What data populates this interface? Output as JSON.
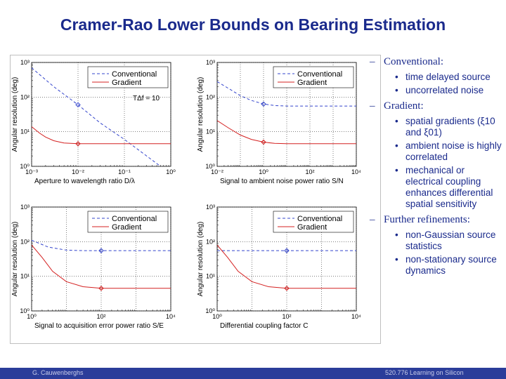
{
  "slide": {
    "title": "Cramer-Rao Lower Bounds on Bearing Estimation",
    "footer_left": "G. Cauwenberghs",
    "footer_right": "520.776 Learning on Silicon"
  },
  "bullets": [
    {
      "heading": "Conventional:",
      "items": [
        "time delayed source",
        "uncorrelated noise"
      ]
    },
    {
      "heading": "Gradient:",
      "items": [
        "spatial gradients (ξ10 and ξ01)",
        "ambient noise is highly correlated",
        "mechanical or electrical coupling enhances differential spatial sensitivity"
      ]
    },
    {
      "heading": "Further refinements:",
      "items": [
        "non-Gaussian source statistics",
        "non-stationary source dynamics"
      ]
    }
  ],
  "colors": {
    "conventional": "#3344cc",
    "gradient": "#d42020",
    "title": "#1a2a8c",
    "footer": "#2b3d9a"
  },
  "chart_data": [
    {
      "type": "line",
      "xlabel": "Aperture to wavelength ratio  D/λ",
      "ylabel": "Angular resolution (deg)",
      "xscale": "log",
      "yscale": "log",
      "xlim": [
        0.001,
        1
      ],
      "ylim": [
        1,
        1000
      ],
      "xticks": [
        "10⁻³",
        "10⁻²",
        "10⁻¹",
        "10⁰"
      ],
      "yticks": [
        "10⁰",
        "10¹",
        "10²",
        "10³"
      ],
      "legend": "top-right",
      "annotation": "TΔf = 10",
      "series": [
        {
          "name": "Conventional",
          "style": "dashed",
          "x": [
            0.001,
            0.003,
            0.01,
            0.03,
            0.1,
            0.3,
            0.6
          ],
          "y": [
            700,
            200,
            60,
            18,
            6,
            2,
            1
          ]
        },
        {
          "name": "Gradient",
          "style": "solid",
          "x": [
            0.001,
            0.0015,
            0.002,
            0.003,
            0.005,
            0.007,
            0.01,
            0.02,
            0.05,
            0.1,
            0.3,
            1
          ],
          "y": [
            14,
            9,
            7,
            5.5,
            4.7,
            4.6,
            4.5,
            4.5,
            4.5,
            4.5,
            4.5,
            4.5
          ]
        }
      ],
      "markers": [
        {
          "series": "Conventional",
          "x": 0.01,
          "y": 60
        },
        {
          "series": "Gradient",
          "x": 0.01,
          "y": 4.5
        }
      ]
    },
    {
      "type": "line",
      "xlabel": "Signal to ambient noise power ratio  S/N",
      "ylabel": "Angular resolution (deg)",
      "xscale": "log",
      "yscale": "log",
      "xlim": [
        0.01,
        10000
      ],
      "ylim": [
        1,
        1000
      ],
      "xticks": [
        "10⁻²",
        "10⁰",
        "10²",
        "10⁴"
      ],
      "yticks": [
        "10⁰",
        "10¹",
        "10²",
        "10³"
      ],
      "legend": "top-right",
      "series": [
        {
          "name": "Conventional",
          "style": "dashed",
          "x": [
            0.01,
            0.03,
            0.1,
            0.3,
            1,
            3,
            10,
            100,
            1000,
            10000
          ],
          "y": [
            280,
            180,
            110,
            80,
            63,
            57,
            55,
            55,
            55,
            55
          ]
        },
        {
          "name": "Gradient",
          "style": "solid",
          "x": [
            0.01,
            0.03,
            0.1,
            0.3,
            1,
            3,
            10,
            100,
            1000,
            10000
          ],
          "y": [
            21,
            13,
            8,
            6,
            5,
            4.6,
            4.5,
            4.5,
            4.5,
            4.5
          ]
        }
      ],
      "markers": [
        {
          "series": "Conventional",
          "x": 1,
          "y": 63
        },
        {
          "series": "Gradient",
          "x": 1,
          "y": 5
        }
      ]
    },
    {
      "type": "line",
      "xlabel": "Signal to acquisition error power ratio  S/E",
      "ylabel": "Angular resolution (deg)",
      "xscale": "log",
      "yscale": "log",
      "xlim": [
        1,
        10000
      ],
      "ylim": [
        1,
        1000
      ],
      "xticks": [
        "10⁰",
        "10²",
        "10⁴"
      ],
      "yticks": [
        "10⁰",
        "10¹",
        "10²",
        "10³"
      ],
      "legend": "top-right",
      "series": [
        {
          "name": "Conventional",
          "style": "dashed",
          "x": [
            1,
            3,
            10,
            30,
            100,
            1000,
            10000
          ],
          "y": [
            110,
            70,
            57,
            55,
            55,
            55,
            55
          ]
        },
        {
          "name": "Gradient",
          "style": "solid",
          "x": [
            1,
            2,
            4,
            10,
            30,
            100,
            1000,
            10000
          ],
          "y": [
            80,
            35,
            14,
            7,
            5,
            4.5,
            4.5,
            4.5
          ]
        }
      ],
      "markers": [
        {
          "series": "Conventional",
          "x": 100,
          "y": 55
        },
        {
          "series": "Gradient",
          "x": 100,
          "y": 4.5
        }
      ]
    },
    {
      "type": "line",
      "xlabel": "Differential coupling factor  C",
      "ylabel": "Angular resolution (deg)",
      "xscale": "log",
      "yscale": "log",
      "xlim": [
        1,
        10000
      ],
      "ylim": [
        1,
        1000
      ],
      "xticks": [
        "10⁰",
        "10²",
        "10⁴"
      ],
      "yticks": [
        "10⁰",
        "10¹",
        "10²",
        "10³"
      ],
      "legend": "top-right",
      "series": [
        {
          "name": "Conventional",
          "style": "dashed",
          "x": [
            1,
            10000
          ],
          "y": [
            55,
            55
          ]
        },
        {
          "name": "Gradient",
          "style": "solid",
          "x": [
            1,
            2,
            4,
            10,
            30,
            100,
            1000,
            10000
          ],
          "y": [
            80,
            35,
            14,
            7,
            5,
            4.5,
            4.5,
            4.5
          ]
        }
      ],
      "markers": [
        {
          "series": "Conventional",
          "x": 100,
          "y": 55
        },
        {
          "series": "Gradient",
          "x": 100,
          "y": 4.5
        }
      ]
    }
  ]
}
